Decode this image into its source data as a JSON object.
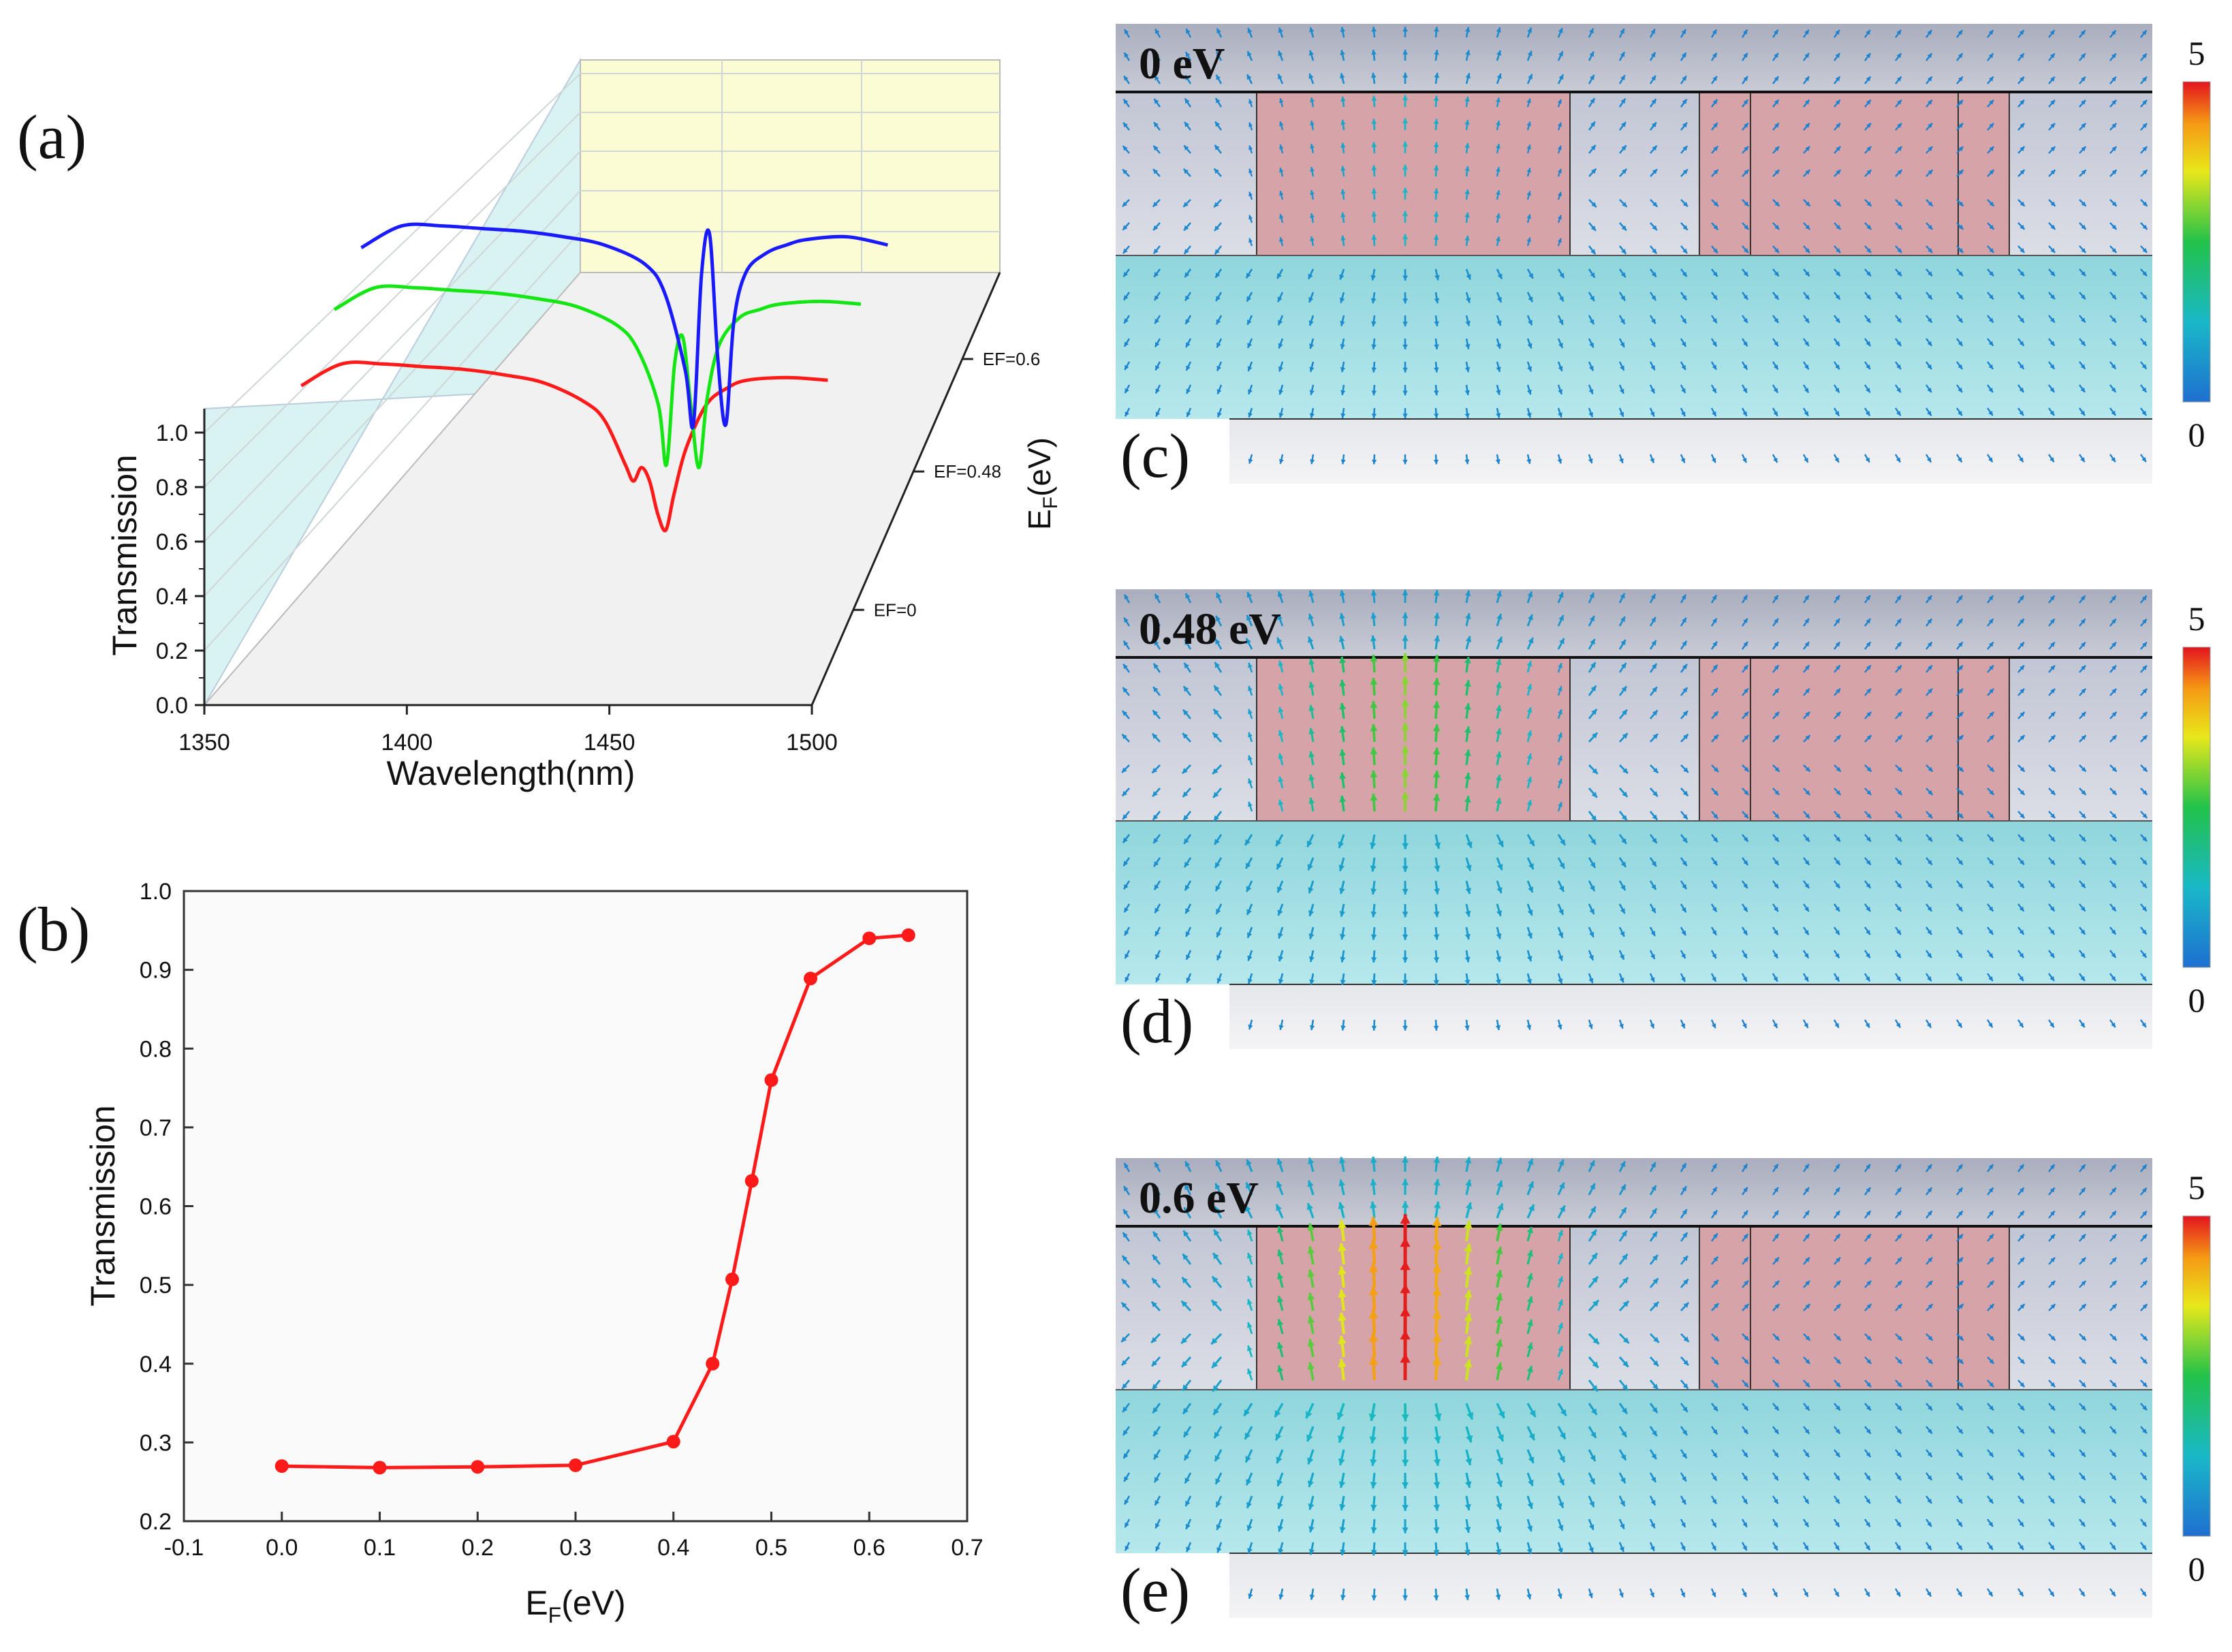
{
  "panel_a": {
    "label": "(a)",
    "xlabel": "Wavelength(nm)",
    "ylabel": "Transmission",
    "zlabel": "E",
    "zlabel_sub": "F",
    "zlabel_unit": "(eV)",
    "xticks": [
      "1350",
      "1400",
      "1450",
      "1500"
    ],
    "yticks": [
      "0.0",
      "0.2",
      "0.4",
      "0.6",
      "0.8",
      "1.0"
    ],
    "zticks": [
      "EF=0",
      "EF=0.48",
      "EF=0.6"
    ]
  },
  "panel_b": {
    "label": "(b)",
    "xlabel": "E",
    "xlabel_sub": "F",
    "xlabel_unit": "(eV)",
    "ylabel": "Transmission",
    "xticks": [
      "-0.1",
      "0.0",
      "0.1",
      "0.2",
      "0.3",
      "0.4",
      "0.5",
      "0.6",
      "0.7"
    ],
    "yticks": [
      "0.2",
      "0.3",
      "0.4",
      "0.5",
      "0.6",
      "0.7",
      "0.8",
      "0.9",
      "1.0"
    ]
  },
  "fields": [
    {
      "label": "(c)",
      "title": "0 eV",
      "cb_max": "5",
      "cb_min": "0",
      "strength": 0.25
    },
    {
      "label": "(d)",
      "title": "0.48 eV",
      "cb_max": "5",
      "cb_min": "0",
      "strength": 0.62
    },
    {
      "label": "(e)",
      "title": "0.6 eV",
      "cb_max": "5",
      "cb_min": "0",
      "strength": 1.0
    }
  ],
  "colors": {
    "curve_0": "#ff1a1a",
    "curve_048": "#14e614",
    "curve_06": "#1a1aff",
    "line_b": "#ff1a1a",
    "top_region": "#b9bdcb",
    "resonator": "#d6a4a8",
    "substrate": "#9ddde2",
    "bottom_region": "#ececf0",
    "back_wall": "#fafad2",
    "side_wall": "#d6f2f0",
    "floor": "#f0f0f0"
  },
  "chart_data": [
    {
      "type": "line",
      "title": "",
      "xlabel": "Wavelength(nm)",
      "ylabel": "Transmission",
      "zlabel": "EF(eV)",
      "xlim": [
        1350,
        1500
      ],
      "ylim": [
        0.0,
        1.1
      ],
      "series": [
        {
          "name": "EF=0",
          "color": "#ff1a1a",
          "x": [
            1370,
            1380,
            1390,
            1400,
            1410,
            1420,
            1430,
            1440,
            1445,
            1450,
            1452,
            1454,
            1456,
            1458,
            1460,
            1462,
            1465,
            1470,
            1475,
            1480,
            1490,
            1500
          ],
          "y": [
            0.95,
            1.03,
            1.03,
            1.02,
            1.01,
            0.99,
            0.96,
            0.89,
            0.82,
            0.66,
            0.6,
            0.65,
            0.6,
            0.48,
            0.42,
            0.55,
            0.72,
            0.88,
            0.94,
            0.97,
            0.98,
            0.97
          ]
        },
        {
          "name": "EF=0.48",
          "color": "#14e614",
          "x": [
            1370,
            1380,
            1390,
            1400,
            1410,
            1420,
            1430,
            1440,
            1445,
            1450,
            1452,
            1454,
            1456,
            1458,
            1460,
            1462,
            1465,
            1470,
            1475,
            1480,
            1490,
            1500
          ],
          "y": [
            0.95,
            1.03,
            1.03,
            1.02,
            1.01,
            0.99,
            0.96,
            0.89,
            0.8,
            0.6,
            0.38,
            0.75,
            0.85,
            0.6,
            0.37,
            0.62,
            0.82,
            0.92,
            0.95,
            0.97,
            0.98,
            0.97
          ]
        },
        {
          "name": "EF=0.6",
          "color": "#1a1aff",
          "x": [
            1370,
            1380,
            1390,
            1400,
            1410,
            1420,
            1430,
            1440,
            1445,
            1450,
            1452,
            1454,
            1456,
            1458,
            1460,
            1462,
            1465,
            1470,
            1475,
            1480,
            1490,
            1500
          ],
          "y": [
            0.95,
            1.03,
            1.03,
            1.02,
            1.01,
            0.99,
            0.96,
            0.89,
            0.78,
            0.5,
            0.3,
            0.85,
            1.0,
            0.55,
            0.3,
            0.68,
            0.86,
            0.93,
            0.96,
            0.98,
            0.99,
            0.96
          ]
        }
      ]
    },
    {
      "type": "line",
      "title": "",
      "xlabel": "EF(eV)",
      "ylabel": "Transmission",
      "xlim": [
        -0.1,
        0.7
      ],
      "ylim": [
        0.2,
        1.0
      ],
      "series": [
        {
          "name": "Transmission",
          "color": "#ff1a1a",
          "x": [
            0.0,
            0.1,
            0.2,
            0.3,
            0.4,
            0.44,
            0.46,
            0.48,
            0.5,
            0.54,
            0.6,
            0.64
          ],
          "y": [
            0.27,
            0.268,
            0.269,
            0.271,
            0.301,
            0.4,
            0.507,
            0.632,
            0.76,
            0.889,
            0.94,
            0.944
          ]
        }
      ]
    }
  ]
}
